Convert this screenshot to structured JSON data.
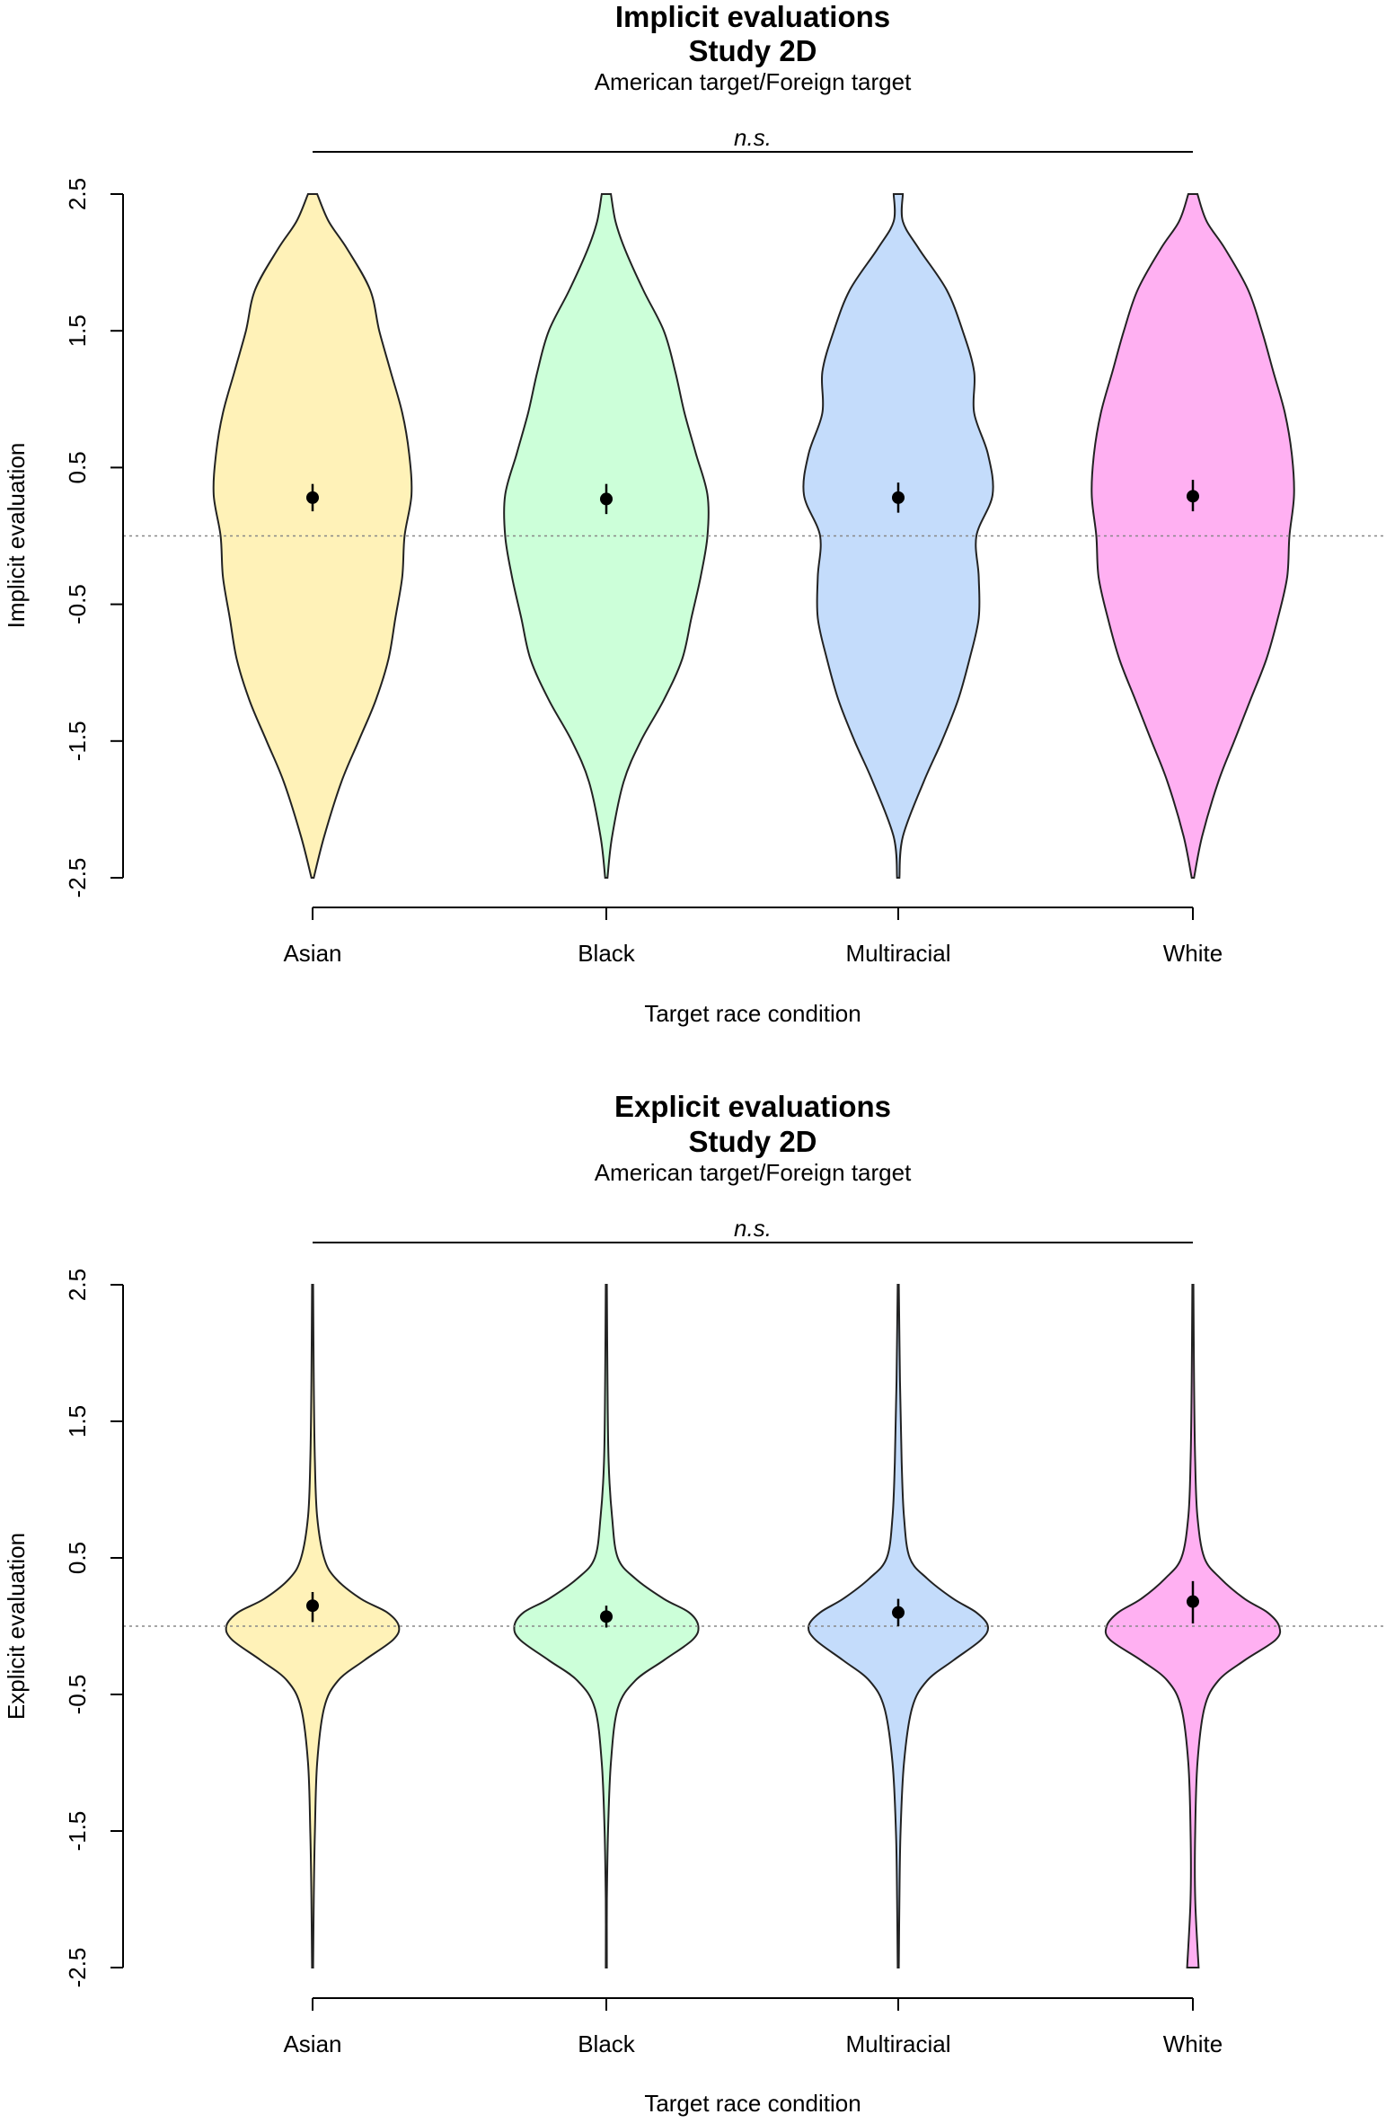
{
  "chart_data": [
    {
      "type": "violin",
      "title": "Implicit evaluations",
      "title2": "Study 2D",
      "subtitle": "American target/Foreign target",
      "significance_label": "n.s.",
      "xlabel": "Target race condition",
      "ylabel": "Implicit evaluation",
      "ylim": [
        -2.5,
        2.5
      ],
      "yticks": [
        "2.5",
        "1.5",
        "0.5",
        "-0.5",
        "-1.5",
        "-2.5"
      ],
      "reference_line_y": 0,
      "categories": [
        "Asian",
        "Black",
        "Multiracial",
        "White"
      ],
      "colors": [
        "#fff2b8",
        "#ccffd9",
        "#c4dcfb",
        "#ffb0f2"
      ],
      "means": [
        0.28,
        0.27,
        0.28,
        0.29
      ],
      "ci": [
        [
          0.18,
          0.38
        ],
        [
          0.16,
          0.38
        ],
        [
          0.17,
          0.39
        ],
        [
          0.18,
          0.41
        ]
      ],
      "density_y": [
        -2.5,
        -2.2,
        -1.8,
        -1.5,
        -1.2,
        -0.9,
        -0.6,
        -0.3,
        0,
        0.3,
        0.6,
        0.9,
        1.2,
        1.5,
        1.8,
        2.1,
        2.3,
        2.5
      ],
      "density_width": [
        [
          0.01,
          0.1,
          0.25,
          0.4,
          0.55,
          0.66,
          0.72,
          0.78,
          0.8,
          0.86,
          0.84,
          0.78,
          0.68,
          0.58,
          0.5,
          0.3,
          0.14,
          0.04
        ],
        [
          0.01,
          0.05,
          0.15,
          0.3,
          0.5,
          0.66,
          0.74,
          0.82,
          0.88,
          0.88,
          0.78,
          0.68,
          0.6,
          0.5,
          0.32,
          0.16,
          0.08,
          0.04
        ],
        [
          0.01,
          0.04,
          0.22,
          0.38,
          0.52,
          0.62,
          0.7,
          0.7,
          0.68,
          0.82,
          0.78,
          0.66,
          0.66,
          0.56,
          0.42,
          0.18,
          0.04,
          0.04
        ],
        [
          0.01,
          0.08,
          0.22,
          0.36,
          0.5,
          0.64,
          0.74,
          0.82,
          0.84,
          0.88,
          0.86,
          0.8,
          0.7,
          0.6,
          0.48,
          0.28,
          0.12,
          0.04
        ]
      ]
    },
    {
      "type": "violin",
      "title": "Explicit evaluations",
      "title2": "Study 2D",
      "subtitle": "American target/Foreign target",
      "significance_label": "n.s.",
      "xlabel": "Target race condition",
      "ylabel": "Explicit evaluation",
      "ylim": [
        -2.5,
        2.5
      ],
      "yticks": [
        "2.5",
        "1.5",
        "0.5",
        "-0.5",
        "-1.5",
        "-2.5"
      ],
      "reference_line_y": 0,
      "categories": [
        "Asian",
        "Black",
        "Multiracial",
        "White"
      ],
      "colors": [
        "#fff2b8",
        "#ccffd9",
        "#c4dcfb",
        "#ffb0f2"
      ],
      "means": [
        0.15,
        0.07,
        0.1,
        0.18
      ],
      "ci": [
        [
          0.03,
          0.25
        ],
        [
          -0.01,
          0.15
        ],
        [
          0.0,
          0.2
        ],
        [
          0.02,
          0.33
        ]
      ],
      "density_y": [
        -2.5,
        -2.0,
        -1.5,
        -1.0,
        -0.6,
        -0.4,
        -0.25,
        -0.1,
        0,
        0.1,
        0.2,
        0.35,
        0.5,
        0.8,
        1.2,
        1.8,
        2.5
      ],
      "density_width": [
        [
          0.005,
          0.01,
          0.02,
          0.04,
          0.1,
          0.22,
          0.45,
          0.7,
          0.75,
          0.65,
          0.42,
          0.2,
          0.1,
          0.04,
          0.02,
          0.01,
          0.005
        ],
        [
          0.005,
          0.005,
          0.015,
          0.04,
          0.1,
          0.25,
          0.5,
          0.75,
          0.8,
          0.72,
          0.5,
          0.25,
          0.1,
          0.05,
          0.02,
          0.01,
          0.005
        ],
        [
          0.005,
          0.01,
          0.02,
          0.05,
          0.12,
          0.25,
          0.48,
          0.72,
          0.78,
          0.68,
          0.48,
          0.25,
          0.1,
          0.05,
          0.03,
          0.015,
          0.005
        ],
        [
          0.05,
          0.02,
          0.02,
          0.04,
          0.1,
          0.22,
          0.45,
          0.72,
          0.75,
          0.65,
          0.45,
          0.24,
          0.1,
          0.04,
          0.02,
          0.01,
          0.005
        ]
      ]
    }
  ]
}
